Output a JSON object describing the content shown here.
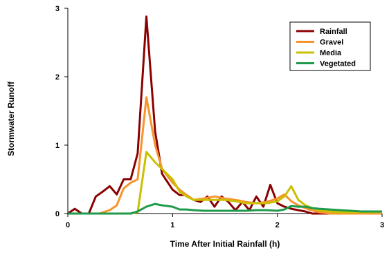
{
  "chart_data": {
    "type": "line",
    "title": "",
    "xlabel": "Time After Initial Rainfall (h)",
    "ylabel": "Stormwater Runoff",
    "xlim": [
      0,
      3
    ],
    "ylim": [
      0,
      3
    ],
    "x_ticks": [
      "0",
      "1",
      "2",
      "3"
    ],
    "y_ticks": [
      "0",
      "1",
      "2",
      "3"
    ],
    "grid": false,
    "legend_position": "top-right",
    "series": [
      {
        "name": "Rainfall",
        "color": "#8B0000",
        "points": [
          [
            0,
            0
          ],
          [
            0.067,
            0.07
          ],
          [
            0.133,
            0
          ],
          [
            0.2,
            0
          ],
          [
            0.267,
            0.25
          ],
          [
            0.333,
            0.32
          ],
          [
            0.4,
            0.4
          ],
          [
            0.467,
            0.28
          ],
          [
            0.533,
            0.5
          ],
          [
            0.6,
            0.5
          ],
          [
            0.667,
            0.88
          ],
          [
            0.75,
            2.88
          ],
          [
            0.833,
            1.2
          ],
          [
            0.9,
            0.58
          ],
          [
            1.0,
            0.35
          ],
          [
            1.067,
            0.27
          ],
          [
            1.133,
            0.27
          ],
          [
            1.2,
            0.2
          ],
          [
            1.267,
            0.17
          ],
          [
            1.333,
            0.25
          ],
          [
            1.4,
            0.1
          ],
          [
            1.467,
            0.25
          ],
          [
            1.533,
            0.17
          ],
          [
            1.6,
            0.05
          ],
          [
            1.667,
            0.17
          ],
          [
            1.733,
            0.05
          ],
          [
            1.8,
            0.25
          ],
          [
            1.867,
            0.1
          ],
          [
            1.933,
            0.42
          ],
          [
            2.0,
            0.15
          ],
          [
            2.067,
            0.1
          ],
          [
            2.133,
            0.07
          ],
          [
            2.2,
            0.05
          ],
          [
            2.267,
            0.03
          ],
          [
            2.333,
            0.0
          ],
          [
            2.4,
            0.0
          ],
          [
            2.5,
            0.0
          ],
          [
            2.6,
            0.0
          ],
          [
            2.7,
            0.0
          ],
          [
            2.8,
            0.0
          ],
          [
            2.9,
            0.0
          ],
          [
            3.0,
            0.0
          ]
        ]
      },
      {
        "name": "Gravel",
        "color": "#F7942B",
        "points": [
          [
            0,
            0
          ],
          [
            0.1,
            0
          ],
          [
            0.2,
            0
          ],
          [
            0.3,
            0
          ],
          [
            0.4,
            0.05
          ],
          [
            0.467,
            0.12
          ],
          [
            0.533,
            0.37
          ],
          [
            0.6,
            0.45
          ],
          [
            0.667,
            0.5
          ],
          [
            0.75,
            1.7
          ],
          [
            0.833,
            1.0
          ],
          [
            0.9,
            0.65
          ],
          [
            1.0,
            0.45
          ],
          [
            1.067,
            0.35
          ],
          [
            1.133,
            0.27
          ],
          [
            1.2,
            0.2
          ],
          [
            1.3,
            0.22
          ],
          [
            1.4,
            0.25
          ],
          [
            1.5,
            0.22
          ],
          [
            1.6,
            0.2
          ],
          [
            1.7,
            0.17
          ],
          [
            1.8,
            0.15
          ],
          [
            1.9,
            0.17
          ],
          [
            2.0,
            0.22
          ],
          [
            2.067,
            0.28
          ],
          [
            2.133,
            0.18
          ],
          [
            2.2,
            0.12
          ],
          [
            2.3,
            0.06
          ],
          [
            2.4,
            0.02
          ],
          [
            2.5,
            0.0
          ],
          [
            2.6,
            0.0
          ],
          [
            2.8,
            0.0
          ],
          [
            3.0,
            0.0
          ]
        ]
      },
      {
        "name": "Media",
        "color": "#C8C000",
        "points": [
          [
            0,
            0
          ],
          [
            0.2,
            0
          ],
          [
            0.4,
            0
          ],
          [
            0.6,
            0
          ],
          [
            0.667,
            0.02
          ],
          [
            0.75,
            0.9
          ],
          [
            0.833,
            0.75
          ],
          [
            0.9,
            0.65
          ],
          [
            1.0,
            0.5
          ],
          [
            1.067,
            0.32
          ],
          [
            1.133,
            0.25
          ],
          [
            1.2,
            0.2
          ],
          [
            1.3,
            0.2
          ],
          [
            1.4,
            0.2
          ],
          [
            1.5,
            0.2
          ],
          [
            1.6,
            0.18
          ],
          [
            1.7,
            0.15
          ],
          [
            1.8,
            0.15
          ],
          [
            1.9,
            0.15
          ],
          [
            2.0,
            0.18
          ],
          [
            2.067,
            0.25
          ],
          [
            2.133,
            0.4
          ],
          [
            2.2,
            0.2
          ],
          [
            2.267,
            0.12
          ],
          [
            2.333,
            0.08
          ],
          [
            2.4,
            0.05
          ],
          [
            2.5,
            0.03
          ],
          [
            2.6,
            0.02
          ],
          [
            2.8,
            0.02
          ],
          [
            3.0,
            0.02
          ]
        ]
      },
      {
        "name": "Vegetated",
        "color": "#1E9A4A",
        "points": [
          [
            0,
            0
          ],
          [
            0.2,
            0
          ],
          [
            0.4,
            0
          ],
          [
            0.6,
            0
          ],
          [
            0.667,
            0.03
          ],
          [
            0.75,
            0.1
          ],
          [
            0.833,
            0.14
          ],
          [
            0.9,
            0.12
          ],
          [
            1.0,
            0.1
          ],
          [
            1.067,
            0.06
          ],
          [
            1.133,
            0.06
          ],
          [
            1.2,
            0.05
          ],
          [
            1.3,
            0.04
          ],
          [
            1.4,
            0.04
          ],
          [
            1.5,
            0.04
          ],
          [
            1.6,
            0.04
          ],
          [
            1.7,
            0.04
          ],
          [
            1.8,
            0.05
          ],
          [
            1.9,
            0.05
          ],
          [
            2.0,
            0.04
          ],
          [
            2.067,
            0.06
          ],
          [
            2.133,
            0.11
          ],
          [
            2.2,
            0.1
          ],
          [
            2.267,
            0.1
          ],
          [
            2.333,
            0.08
          ],
          [
            2.4,
            0.07
          ],
          [
            2.5,
            0.06
          ],
          [
            2.6,
            0.05
          ],
          [
            2.7,
            0.04
          ],
          [
            2.8,
            0.03
          ],
          [
            2.9,
            0.03
          ],
          [
            3.0,
            0.03
          ]
        ]
      }
    ]
  }
}
